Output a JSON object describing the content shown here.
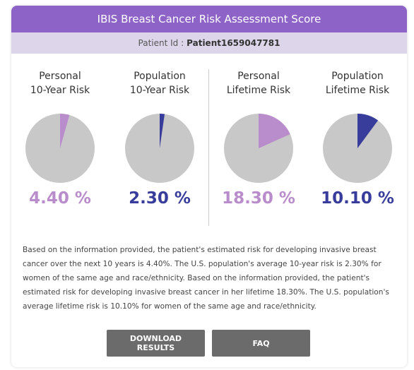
{
  "header": {
    "title": "IBIS Breast Cancer Risk Assessment Score",
    "patient_label": "Patient Id :",
    "patient_id": "Patient1659047781"
  },
  "pies": [
    {
      "title_lines": [
        "Personal",
        "10-Year Risk"
      ],
      "value": 4.4,
      "value_label": "4.40 %",
      "color": "#b98ccc"
    },
    {
      "title_lines": [
        "Population",
        "10-Year Risk"
      ],
      "value": 2.3,
      "value_label": "2.30 %",
      "color": "#383c9a"
    },
    {
      "title_lines": [
        "Personal",
        "Lifetime Risk"
      ],
      "value": 18.3,
      "value_label": "18.30 %",
      "color": "#b98ccc"
    },
    {
      "title_lines": [
        "Population",
        "Lifetime Risk"
      ],
      "value": 10.1,
      "value_label": "10.10 %",
      "color": "#383c9a"
    }
  ],
  "summary": "Based on the information provided, the patient's estimated risk for developing invasive breast cancer over the next 10 years is 4.40%. The U.S. population's average 10-year risk is 2.30% for women of the same age and race/ethnicity. Based on the information provided, the patient's estimated risk for developing invasive breast cancer in her lifetime 18.30%. The U.S. population's average lifetime risk is 10.10% for women of the same age and race/ethnicity.",
  "buttons": [
    "DOWNLOAD RESULTS",
    "FAQ"
  ]
}
